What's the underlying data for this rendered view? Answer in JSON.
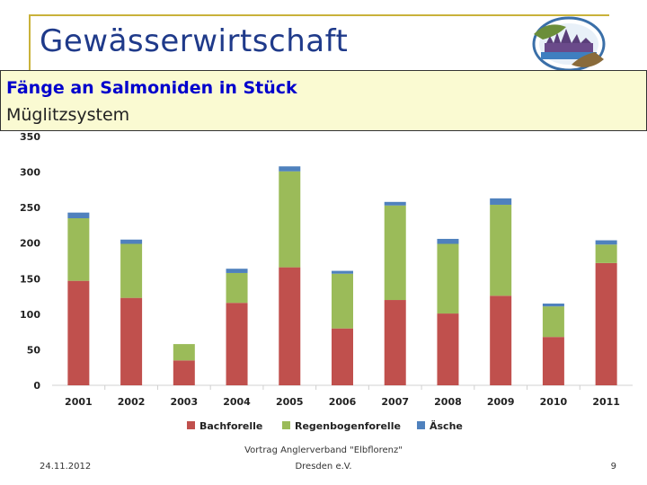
{
  "header": {
    "title": "Gewässerwirtschaft"
  },
  "banner": {
    "heading": "Fänge an Salmoniden in Stück",
    "subheading": "Müglitzsystem"
  },
  "chart_data": {
    "type": "bar",
    "stacked": true,
    "title": "Fänge an Salmoniden in Stück",
    "subtitle": "Müglitzsystem",
    "categories": [
      "2001",
      "2002",
      "2003",
      "2004",
      "2005",
      "2006",
      "2007",
      "2008",
      "2009",
      "2010",
      "2011"
    ],
    "series": [
      {
        "name": "Bachforelle",
        "color": "#c0504d",
        "values": [
          147,
          123,
          35,
          116,
          166,
          80,
          120,
          101,
          126,
          68,
          172
        ]
      },
      {
        "name": "Regenbogenforelle",
        "color": "#9bbb59",
        "values": [
          88,
          76,
          23,
          42,
          135,
          77,
          133,
          98,
          128,
          43,
          26
        ]
      },
      {
        "name": "Äsche",
        "color": "#4f81bd",
        "values": [
          8,
          6,
          0,
          6,
          7,
          4,
          5,
          7,
          9,
          4,
          6
        ]
      }
    ],
    "yticks": [
      "0",
      "50",
      "100",
      "150",
      "200",
      "250",
      "300",
      "350"
    ],
    "ylim": [
      0,
      350
    ],
    "grid": false,
    "legend_position": "bottom"
  },
  "footer": {
    "date": "24.11.2012",
    "center_line1": "Vortrag Anglerverband \"Elbflorenz\"",
    "center_line2": "Dresden e.V.",
    "page": "9"
  }
}
